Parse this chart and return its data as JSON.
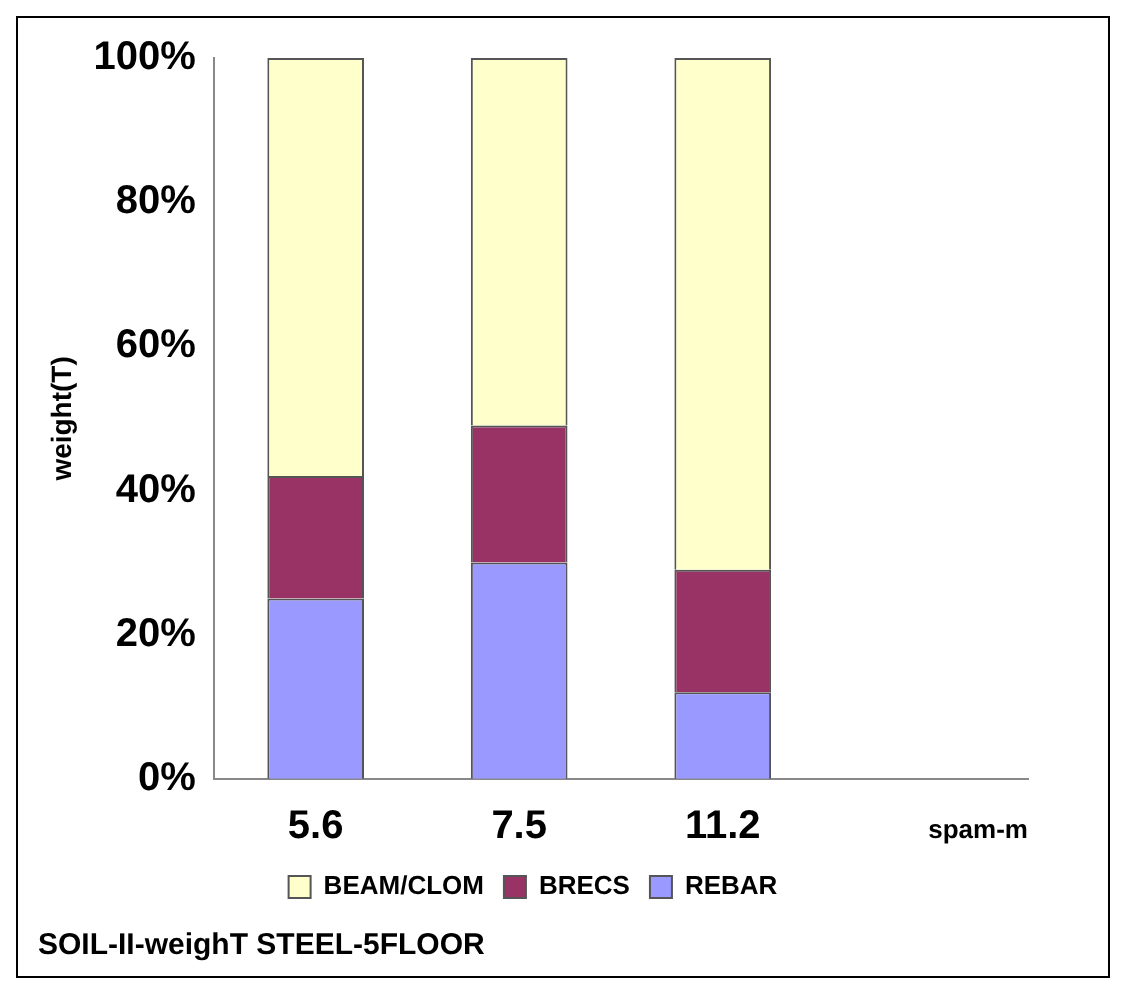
{
  "chart_data": {
    "type": "bar",
    "stacked": true,
    "title": "SOIL-II-weighT STEEL-5FLOOR",
    "xlabel": "spam-m",
    "ylabel": "weight(T)",
    "categories": [
      "5.6",
      "7.5",
      "11.2",
      null
    ],
    "series": [
      {
        "name": "REBAR",
        "color": "#9999ff",
        "values": [
          25,
          30,
          12,
          null
        ]
      },
      {
        "name": "BRECS",
        "color": "#993366",
        "values": [
          17,
          19,
          17,
          null
        ]
      },
      {
        "name": "BEAM/CLOM",
        "color": "#ffffcc",
        "values": [
          58,
          51,
          71,
          null
        ]
      }
    ],
    "ylim": [
      0,
      100
    ],
    "yticks": [
      {
        "value": 0,
        "label": "0%"
      },
      {
        "value": 20,
        "label": "20%"
      },
      {
        "value": 40,
        "label": "40%"
      },
      {
        "value": 60,
        "label": "60%"
      },
      {
        "value": 80,
        "label": "80%"
      },
      {
        "value": 100,
        "label": "100%"
      }
    ],
    "grid": false,
    "legend": "bottom"
  }
}
